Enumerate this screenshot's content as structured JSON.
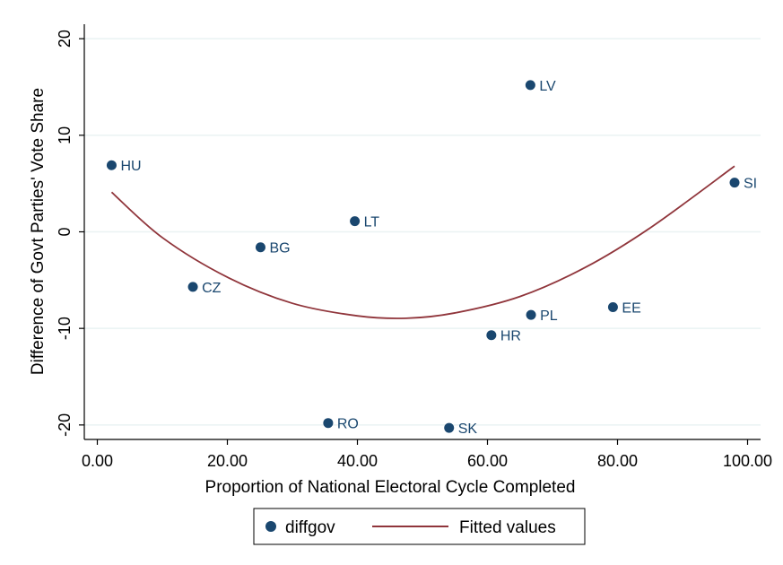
{
  "chart_data": {
    "type": "scatter",
    "xlabel": "Proportion of National Electoral Cycle Completed",
    "ylabel": "Difference of Govt Parties' Vote Share",
    "xlim": [
      -2,
      102
    ],
    "ylim": [
      -21.5,
      21.5
    ],
    "xticks": [
      0,
      20,
      40,
      60,
      80,
      100
    ],
    "xtick_labels": [
      "0.00",
      "20.00",
      "40.00",
      "60.00",
      "80.00",
      "100.00"
    ],
    "yticks": [
      -20,
      -10,
      0,
      10,
      20
    ],
    "ytick_labels": [
      "-20",
      "-10",
      "0",
      "10",
      "20"
    ],
    "grid": "horizontal",
    "legend_position": "bottom",
    "series": [
      {
        "name": "diffgov",
        "kind": "scatter",
        "color": "#1a476f",
        "points": [
          {
            "label": "HU",
            "x": 2.2,
            "y": 6.9
          },
          {
            "label": "CZ",
            "x": 14.7,
            "y": -5.7
          },
          {
            "label": "BG",
            "x": 25.1,
            "y": -1.6
          },
          {
            "label": "LT",
            "x": 39.6,
            "y": 1.1
          },
          {
            "label": "RO",
            "x": 35.5,
            "y": -19.8
          },
          {
            "label": "SK",
            "x": 54.1,
            "y": -20.3
          },
          {
            "label": "HR",
            "x": 60.6,
            "y": -10.7
          },
          {
            "label": "PL",
            "x": 66.7,
            "y": -8.6
          },
          {
            "label": "LV",
            "x": 66.6,
            "y": 15.2
          },
          {
            "label": "EE",
            "x": 79.3,
            "y": -7.8
          },
          {
            "label": "SI",
            "x": 98.0,
            "y": 5.1
          }
        ]
      },
      {
        "name": "Fitted values",
        "kind": "line",
        "color": "#90353b",
        "x": [
          2.2,
          10,
          20,
          30,
          40,
          47.5,
          55,
          65,
          75,
          85,
          98.0
        ],
        "y": [
          4.1,
          -0.6,
          -4.7,
          -7.4,
          -8.7,
          -8.95,
          -8.4,
          -6.7,
          -3.7,
          0.4,
          6.8
        ]
      }
    ]
  }
}
